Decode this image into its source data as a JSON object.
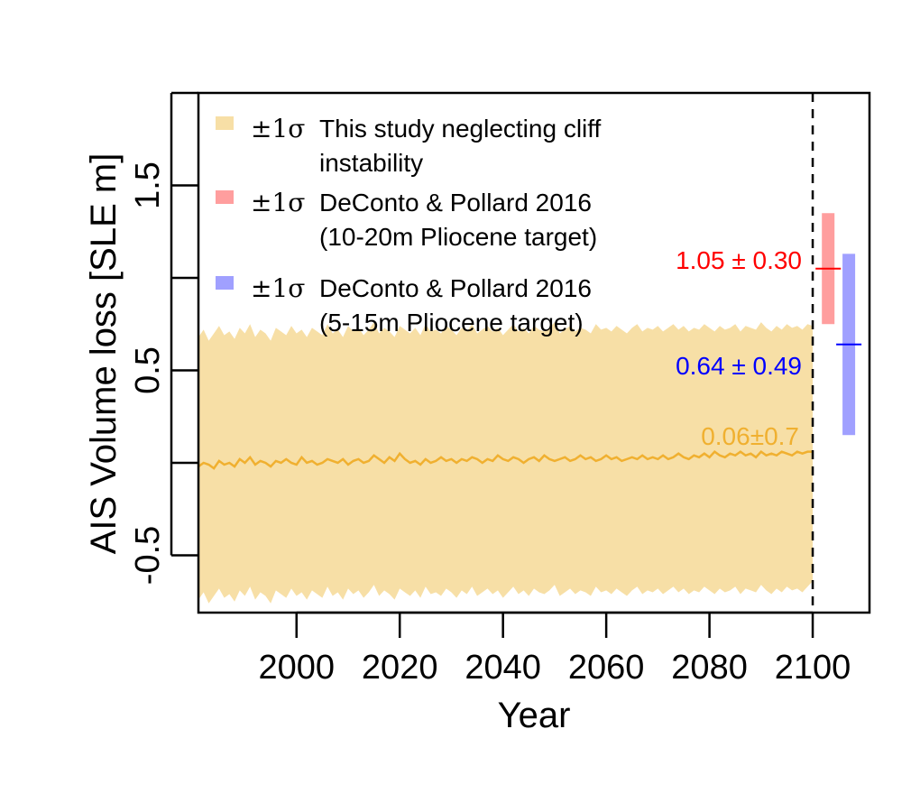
{
  "chart_data": {
    "type": "area",
    "xlabel": "Year",
    "ylabel": "AIS Volume loss [SLE m]",
    "xlim": [
      1981,
      2111
    ],
    "ylim": [
      -0.81,
      2.0
    ],
    "x_ticks": [
      2000,
      2020,
      2040,
      2060,
      2080,
      2100
    ],
    "y_ticks": [
      -0.5,
      0.5,
      1.5
    ],
    "y_ticks_unlabeled": [
      0,
      1
    ],
    "y_tick_range": [
      -0.5,
      2.0
    ],
    "x_tick_labels": [
      "2000",
      "2020",
      "2040",
      "2060",
      "2080",
      "2100"
    ],
    "y_tick_labels": [
      "-0.5",
      "0.5",
      "1.5"
    ],
    "grid": false,
    "legend_position": "top-left",
    "vline": {
      "x": 2100,
      "style": "dashed",
      "color": "#000000"
    },
    "series": [
      {
        "name": "This study neglecting cliff instability",
        "legend_prefix": "±1σ",
        "legend_lines": [
          "This study neglecting cliff",
          "instability"
        ],
        "color_line": "#f0b030",
        "color_band": "#f7dfa6",
        "x_start": 1981,
        "x_end": 2100,
        "mean": [
          -0.02,
          0.0,
          -0.01,
          -0.03,
          0.01,
          -0.01,
          0.0,
          -0.02,
          0.02,
          0.0,
          0.03,
          -0.01,
          0.01,
          0.0,
          -0.02,
          0.01,
          0.0,
          0.02,
          0.0,
          -0.01,
          0.03,
          0.0,
          0.01,
          -0.01,
          0.0,
          0.02,
          0.01,
          0.0,
          0.02,
          -0.01,
          0.01,
          0.02,
          0.0,
          0.01,
          0.04,
          0.02,
          0.0,
          0.03,
          0.01,
          0.05,
          0.02,
          0.0,
          0.01,
          -0.01,
          0.02,
          0.0,
          0.01,
          0.03,
          0.01,
          0.02,
          0.0,
          0.02,
          0.01,
          0.03,
          0.02,
          0.0,
          0.02,
          0.01,
          0.04,
          0.02,
          0.01,
          0.03,
          0.02,
          0.0,
          0.02,
          0.03,
          0.01,
          0.04,
          0.02,
          0.01,
          0.02,
          0.03,
          0.01,
          0.02,
          0.04,
          0.02,
          0.03,
          0.01,
          0.02,
          0.04,
          0.02,
          0.03,
          0.01,
          0.02,
          0.03,
          0.02,
          0.04,
          0.02,
          0.03,
          0.02,
          0.04,
          0.02,
          0.03,
          0.05,
          0.03,
          0.02,
          0.04,
          0.03,
          0.05,
          0.03,
          0.06,
          0.04,
          0.03,
          0.05,
          0.04,
          0.06,
          0.04,
          0.05,
          0.03,
          0.06,
          0.04,
          0.05,
          0.04,
          0.06,
          0.05,
          0.04,
          0.06,
          0.05,
          0.06,
          0.06
        ],
        "upper": [
          0.68,
          0.72,
          0.66,
          0.7,
          0.74,
          0.69,
          0.71,
          0.67,
          0.73,
          0.7,
          0.75,
          0.68,
          0.72,
          0.7,
          0.66,
          0.73,
          0.71,
          0.69,
          0.74,
          0.7,
          0.72,
          0.68,
          0.73,
          0.71,
          0.69,
          0.75,
          0.7,
          0.72,
          0.68,
          0.74,
          0.71,
          0.73,
          0.69,
          0.72,
          0.76,
          0.7,
          0.73,
          0.71,
          0.68,
          0.74,
          0.72,
          0.7,
          0.73,
          0.69,
          0.75,
          0.71,
          0.72,
          0.7,
          0.74,
          0.72,
          0.69,
          0.73,
          0.71,
          0.75,
          0.7,
          0.72,
          0.74,
          0.71,
          0.73,
          0.69,
          0.72,
          0.75,
          0.71,
          0.73,
          0.7,
          0.74,
          0.72,
          0.71,
          0.73,
          0.76,
          0.7,
          0.72,
          0.74,
          0.71,
          0.73,
          0.72,
          0.7,
          0.75,
          0.72,
          0.73,
          0.71,
          0.74,
          0.72,
          0.7,
          0.73,
          0.75,
          0.71,
          0.73,
          0.72,
          0.74,
          0.71,
          0.73,
          0.75,
          0.72,
          0.74,
          0.71,
          0.73,
          0.72,
          0.75,
          0.73,
          0.71,
          0.74,
          0.72,
          0.73,
          0.75,
          0.71,
          0.74,
          0.73,
          0.72,
          0.76,
          0.73,
          0.71,
          0.74,
          0.72,
          0.75,
          0.73,
          0.74,
          0.72,
          0.75,
          0.74
        ],
        "lower": [
          -0.74,
          -0.7,
          -0.76,
          -0.72,
          -0.68,
          -0.73,
          -0.71,
          -0.75,
          -0.69,
          -0.72,
          -0.67,
          -0.74,
          -0.7,
          -0.72,
          -0.76,
          -0.69,
          -0.71,
          -0.73,
          -0.68,
          -0.72,
          -0.7,
          -0.74,
          -0.69,
          -0.71,
          -0.73,
          -0.67,
          -0.72,
          -0.7,
          -0.74,
          -0.68,
          -0.71,
          -0.69,
          -0.73,
          -0.7,
          -0.66,
          -0.72,
          -0.69,
          -0.71,
          -0.74,
          -0.68,
          -0.7,
          -0.72,
          -0.69,
          -0.73,
          -0.67,
          -0.71,
          -0.7,
          -0.72,
          -0.68,
          -0.7,
          -0.73,
          -0.69,
          -0.71,
          -0.67,
          -0.72,
          -0.7,
          -0.68,
          -0.71,
          -0.69,
          -0.73,
          -0.7,
          -0.67,
          -0.71,
          -0.69,
          -0.72,
          -0.68,
          -0.7,
          -0.71,
          -0.69,
          -0.66,
          -0.72,
          -0.7,
          -0.68,
          -0.71,
          -0.69,
          -0.7,
          -0.72,
          -0.67,
          -0.7,
          -0.69,
          -0.71,
          -0.68,
          -0.7,
          -0.72,
          -0.69,
          -0.67,
          -0.71,
          -0.69,
          -0.7,
          -0.68,
          -0.71,
          -0.69,
          -0.67,
          -0.7,
          -0.68,
          -0.71,
          -0.69,
          -0.7,
          -0.67,
          -0.69,
          -0.71,
          -0.68,
          -0.7,
          -0.69,
          -0.67,
          -0.71,
          -0.68,
          -0.69,
          -0.7,
          -0.66,
          -0.69,
          -0.71,
          -0.68,
          -0.7,
          -0.67,
          -0.69,
          -0.68,
          -0.7,
          -0.67,
          -0.64
        ],
        "annotation": {
          "text": "0.06±0.7",
          "x": 2100,
          "y": 0.06
        }
      },
      {
        "name": "DeConto & Pollard 2016 (10-20m Pliocene target)",
        "legend_prefix": "±1σ",
        "legend_lines": [
          "DeConto & Pollard 2016",
          "(10-20m Pliocene target)"
        ],
        "color_line": "#ff0000",
        "color_band": "#ff9e9e",
        "bar_x": 2103,
        "mean": 1.05,
        "sd": 0.3,
        "annotation": {
          "text": "1.05 ± 0.30"
        }
      },
      {
        "name": "DeConto & Pollard 2016 (5-15m Pliocene target)",
        "legend_prefix": "±1σ",
        "legend_lines": [
          "DeConto & Pollard 2016",
          "(5-15m Pliocene target)"
        ],
        "color_line": "#0000ff",
        "color_band": "#a0a0ff",
        "bar_x": 2107,
        "mean": 0.64,
        "sd": 0.49,
        "annotation": {
          "text": "0.64 ± 0.49"
        }
      }
    ]
  }
}
